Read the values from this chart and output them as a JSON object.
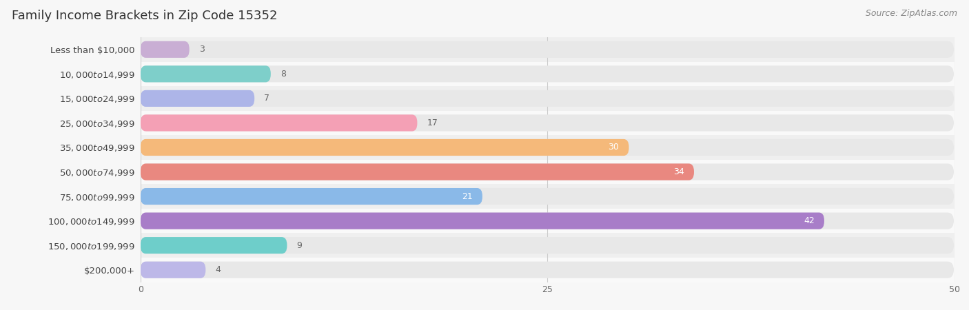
{
  "title": "Family Income Brackets in Zip Code 15352",
  "source": "Source: ZipAtlas.com",
  "categories": [
    "Less than $10,000",
    "$10,000 to $14,999",
    "$15,000 to $24,999",
    "$25,000 to $34,999",
    "$35,000 to $49,999",
    "$50,000 to $74,999",
    "$75,000 to $99,999",
    "$100,000 to $149,999",
    "$150,000 to $199,999",
    "$200,000+"
  ],
  "values": [
    3,
    8,
    7,
    17,
    30,
    34,
    21,
    42,
    9,
    4
  ],
  "bar_colors": [
    "#c9aed4",
    "#7ecfca",
    "#adb5e8",
    "#f4a0b5",
    "#f5b97a",
    "#e98880",
    "#8ab9e8",
    "#a87dc8",
    "#6ececa",
    "#bdb8e8"
  ],
  "value_inside_color": "#ffffff",
  "value_outside_color": "#666666",
  "inside_threshold": 20,
  "xlim": [
    0,
    50
  ],
  "xticks": [
    0,
    25,
    50
  ],
  "background_color": "#f7f7f7",
  "row_colors": [
    "#efefef",
    "#f9f9f9"
  ],
  "bar_bg_color": "#e8e8e8",
  "title_fontsize": 13,
  "label_fontsize": 9.5,
  "value_fontsize": 9,
  "source_fontsize": 9,
  "tick_fontsize": 9
}
